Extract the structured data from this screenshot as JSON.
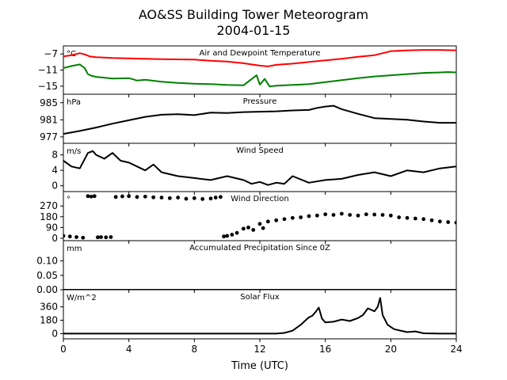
{
  "figure": {
    "title": "AO&SS Building Tower Meteorogram",
    "subtitle": "2004-01-15",
    "xlabel": "Time (UTC)",
    "xticks": [
      "0",
      "4",
      "8",
      "12",
      "16",
      "20",
      "24"
    ]
  },
  "chart_data": [
    {
      "type": "line",
      "title": "Air and Dewpoint Temperature",
      "unit": "°C",
      "xlim": [
        0,
        24
      ],
      "ylim": [
        -17,
        -5
      ],
      "yticks": [
        -7,
        -11,
        -15
      ],
      "ytick_labels": [
        "−7",
        "−11",
        "−15"
      ],
      "series": [
        {
          "name": "",
          "color": "#ff0000",
          "x": [
            0,
            0.5,
            1,
            1.3,
            1.6,
            2,
            3,
            4,
            6,
            8,
            9,
            10,
            11,
            12,
            12.5,
            13,
            14,
            15,
            16,
            17,
            18,
            19,
            19.5,
            20,
            20.5,
            21,
            22,
            23,
            24
          ],
          "y": [
            -7.6,
            -7.3,
            -6.8,
            -7.1,
            -7.6,
            -7.8,
            -8.0,
            -8.1,
            -8.3,
            -8.4,
            -8.7,
            -8.9,
            -9.3,
            -9.9,
            -10.1,
            -9.7,
            -9.4,
            -9.0,
            -8.6,
            -8.2,
            -7.7,
            -7.3,
            -6.8,
            -6.3,
            -6.2,
            -6.1,
            -6.0,
            -6.0,
            -6.1
          ]
        },
        {
          "name": "",
          "color": "#008000",
          "x": [
            0,
            0.5,
            1,
            1.3,
            1.5,
            1.7,
            2,
            3,
            4,
            4.5,
            5,
            6,
            7,
            8,
            9,
            10,
            11,
            11.8,
            12,
            12.3,
            12.6,
            13,
            14,
            15,
            16,
            17,
            18,
            19,
            20,
            21,
            22,
            23,
            23.5,
            24
          ],
          "y": [
            -10.5,
            -10.0,
            -9.6,
            -10.5,
            -12.0,
            -12.4,
            -12.7,
            -13.1,
            -13.0,
            -13.6,
            -13.4,
            -13.9,
            -14.2,
            -14.4,
            -14.5,
            -14.7,
            -14.8,
            -12.3,
            -14.6,
            -13.2,
            -15.1,
            -14.9,
            -14.7,
            -14.5,
            -14.0,
            -13.5,
            -13.0,
            -12.6,
            -12.3,
            -12.0,
            -11.7,
            -11.6,
            -11.5,
            -11.6
          ]
        }
      ]
    },
    {
      "type": "line",
      "title": "Pressure",
      "unit": "hPa",
      "xlim": [
        0,
        24
      ],
      "ylim": [
        975.5,
        987
      ],
      "yticks": [
        985,
        981,
        977
      ],
      "ytick_labels": [
        "985",
        "981",
        "977"
      ],
      "series": [
        {
          "name": "",
          "color": "#000000",
          "x": [
            0,
            1,
            2,
            3,
            4,
            5,
            6,
            7,
            8,
            9,
            10,
            11,
            12,
            13,
            14,
            15,
            15.5,
            16,
            16.5,
            17,
            18,
            19,
            20,
            21,
            22,
            23,
            24
          ],
          "y": [
            977.7,
            978.4,
            979.2,
            980.1,
            980.9,
            981.7,
            982.2,
            982.3,
            982.1,
            982.7,
            982.6,
            982.8,
            982.9,
            983.0,
            983.2,
            983.3,
            983.8,
            984.1,
            984.3,
            983.5,
            982.4,
            981.4,
            981.2,
            981.0,
            980.6,
            980.3,
            980.3
          ]
        }
      ]
    },
    {
      "type": "line",
      "title": "Wind Speed",
      "unit": "m/s",
      "xlim": [
        0,
        24
      ],
      "ylim": [
        -1.5,
        11
      ],
      "yticks": [
        8,
        4,
        0
      ],
      "ytick_labels": [
        "8",
        "4",
        "0"
      ],
      "series": [
        {
          "name": "",
          "color": "#000000",
          "x": [
            0,
            0.5,
            1,
            1.5,
            1.8,
            2,
            2.5,
            3,
            3.5,
            4,
            4.5,
            5,
            5.5,
            6,
            7,
            8,
            9,
            10,
            11,
            11.5,
            12,
            12.5,
            13,
            13.5,
            14,
            15,
            16,
            17,
            18,
            19,
            20,
            21,
            22,
            23,
            24
          ],
          "y": [
            6.5,
            5.0,
            4.5,
            8.5,
            9.0,
            8.0,
            7.0,
            8.5,
            6.5,
            6.0,
            5.0,
            4.0,
            5.5,
            3.5,
            2.5,
            2.0,
            1.5,
            2.5,
            1.5,
            0.5,
            1.0,
            0.2,
            0.8,
            0.5,
            2.5,
            0.8,
            1.5,
            1.8,
            2.8,
            3.5,
            2.5,
            4.0,
            3.5,
            4.5,
            5.0
          ]
        }
      ]
    },
    {
      "type": "scatter",
      "title": "Wind Direction",
      "unit": "°",
      "xlim": [
        0,
        24
      ],
      "ylim": [
        -20,
        390
      ],
      "yticks": [
        270,
        180,
        90,
        0
      ],
      "ytick_labels": [
        "270",
        "180",
        "90",
        "0"
      ],
      "series": [
        {
          "name": "",
          "color": "#000000",
          "x": [
            0,
            0.4,
            0.8,
            1.2,
            1.5,
            1.7,
            1.9,
            2.1,
            2.3,
            2.6,
            2.9,
            3.2,
            3.6,
            4,
            4.5,
            5,
            5.5,
            6,
            6.5,
            7,
            7.5,
            8,
            8.5,
            9,
            9.3,
            9.6,
            9.8,
            10,
            10.3,
            10.6,
            11,
            11.3,
            11.6,
            12,
            12.2,
            12.5,
            13,
            13.5,
            14,
            14.5,
            15,
            15.5,
            16,
            16.5,
            17,
            17.5,
            18,
            18.5,
            19,
            19.5,
            20,
            20.5,
            21,
            21.5,
            22,
            22.5,
            23,
            23.5,
            24
          ],
          "y": [
            20,
            15,
            10,
            5,
            352,
            348,
            352,
            8,
            10,
            8,
            10,
            345,
            350,
            352,
            345,
            348,
            342,
            340,
            335,
            340,
            330,
            335,
            328,
            332,
            340,
            345,
            15,
            20,
            30,
            45,
            80,
            90,
            70,
            120,
            85,
            140,
            150,
            160,
            170,
            175,
            185,
            190,
            200,
            195,
            205,
            195,
            190,
            200,
            198,
            195,
            190,
            175,
            170,
            165,
            160,
            150,
            140,
            135,
            130
          ]
        }
      ]
    },
    {
      "type": "line",
      "title": "Accumulated Precipitation Since 0Z",
      "unit": "mm",
      "xlim": [
        0,
        24
      ],
      "ylim": [
        0,
        0.17
      ],
      "yticks": [
        0.1,
        0.05,
        0.0
      ],
      "ytick_labels": [
        "0.10",
        "0.05",
        "0.00"
      ],
      "series": [
        {
          "name": "",
          "color": "#000000",
          "x": [
            0,
            24
          ],
          "y": [
            0,
            0
          ]
        }
      ]
    },
    {
      "type": "line",
      "title": "Solar Flux",
      "unit": "W/m^2",
      "xlim": [
        0,
        24
      ],
      "ylim": [
        -70,
        590
      ],
      "yticks": [
        360,
        180,
        0
      ],
      "ytick_labels": [
        "360",
        "180",
        "0"
      ],
      "series": [
        {
          "name": "",
          "color": "#000000",
          "x": [
            0,
            13,
            13.5,
            14,
            14.5,
            14.8,
            15,
            15.2,
            15.4,
            15.6,
            15.8,
            16,
            16.5,
            17,
            17.5,
            18,
            18.3,
            18.6,
            19,
            19.2,
            19.35,
            19.5,
            19.8,
            20.2,
            20.6,
            21,
            21.5,
            22,
            23,
            24
          ],
          "y": [
            0,
            0,
            10,
            40,
            120,
            180,
            220,
            240,
            290,
            350,
            200,
            150,
            160,
            190,
            170,
            210,
            250,
            340,
            300,
            360,
            480,
            250,
            120,
            60,
            40,
            20,
            30,
            5,
            0,
            0
          ]
        }
      ]
    }
  ]
}
